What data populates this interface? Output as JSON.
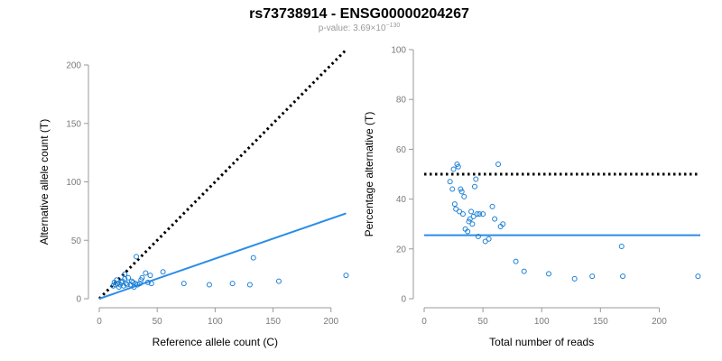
{
  "title": "rs73738914 - ENSG00000204267",
  "subtitle": {
    "prefix": "p-value: 3.69×10",
    "exponent": "−130"
  },
  "colors": {
    "points": "#1a7fd4",
    "fit_line": "#2b8ce8",
    "reference_line": "#000000",
    "axes": "#9a9a9a"
  },
  "chart_data": [
    {
      "type": "scatter",
      "xlabel": "Reference allele count (C)",
      "ylabel": "Alternative allele count (T)",
      "xlim": [
        0,
        215
      ],
      "ylim": [
        0,
        200
      ],
      "xticks": [
        0,
        50,
        100,
        150,
        200
      ],
      "yticks": [
        0,
        50,
        100,
        150,
        200
      ],
      "points": {
        "x": [
          12,
          13,
          14,
          15,
          16,
          17,
          18,
          19,
          20,
          21,
          22,
          22,
          23,
          24,
          25,
          27,
          28,
          29,
          30,
          31,
          32,
          33,
          35,
          36,
          37,
          40,
          42,
          44,
          45,
          55,
          73,
          95,
          115,
          130,
          133,
          155,
          213
        ],
        "y": [
          11,
          14,
          12,
          16,
          13,
          10,
          12,
          14,
          15,
          11,
          17,
          21,
          13,
          12,
          18,
          12,
          15,
          14,
          10,
          13,
          36,
          12,
          13,
          16,
          18,
          22,
          14,
          20,
          13,
          23,
          13,
          12,
          13,
          12,
          35,
          15,
          20
        ]
      },
      "reference_line": {
        "style": "dotted",
        "x": [
          0,
          213
        ],
        "y": [
          0,
          213
        ]
      },
      "fit_line": {
        "style": "solid",
        "x": [
          0,
          213
        ],
        "y": [
          0,
          73
        ]
      }
    },
    {
      "type": "scatter",
      "xlabel": "Total number of reads",
      "ylabel": "Percentage alternative (T)",
      "xlim": [
        0,
        235
      ],
      "ylim": [
        0,
        100
      ],
      "xticks": [
        0,
        50,
        100,
        150,
        200
      ],
      "yticks": [
        0,
        20,
        40,
        60,
        80,
        100
      ],
      "points": {
        "x": [
          22,
          24,
          25,
          26,
          27,
          28,
          29,
          30,
          31,
          32,
          33,
          34,
          35,
          37,
          38,
          39,
          40,
          41,
          42,
          43,
          44,
          45,
          46,
          47,
          50,
          52,
          55,
          58,
          60,
          63,
          65,
          67,
          78,
          85,
          106,
          128,
          143,
          168,
          169,
          233
        ],
        "y": [
          47,
          44,
          52,
          38,
          36,
          54,
          53,
          35,
          44,
          43,
          34,
          41,
          28,
          27,
          31,
          32,
          35,
          30,
          33,
          45,
          48,
          34,
          25,
          34,
          34,
          23,
          24,
          37,
          32,
          54,
          29,
          30,
          15,
          11,
          10,
          8,
          9,
          21,
          9,
          9
        ]
      },
      "reference_line": {
        "style": "dotted",
        "y": 50
      },
      "fit_line": {
        "style": "solid",
        "y": 25.5
      }
    }
  ]
}
